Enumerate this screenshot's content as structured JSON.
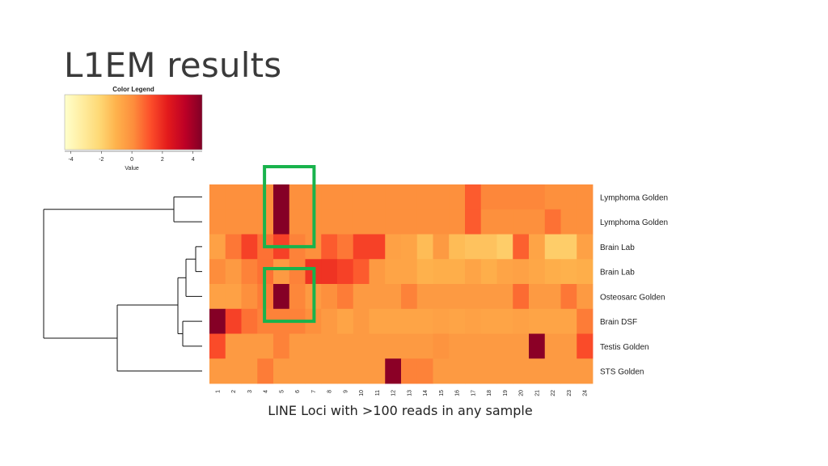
{
  "slide": {
    "title": "L1EM results",
    "caption": "LINE Loci with >100 reads in any sample"
  },
  "chart_data": {
    "type": "heatmap",
    "legend": {
      "title": "Color Legend",
      "axis_label": "Value",
      "ticks": [
        "-4",
        "-2",
        "0",
        "2",
        "4"
      ],
      "range": [
        -4.4,
        4.6
      ],
      "gradient": [
        "#ffffcc",
        "#ffeda0",
        "#fed976",
        "#feb24c",
        "#fd8d3c",
        "#fc4e2a",
        "#e31a1c",
        "#bd0026",
        "#800026"
      ]
    },
    "columns": [
      "1",
      "2",
      "3",
      "4",
      "5",
      "6",
      "7",
      "8",
      "9",
      "10",
      "11",
      "12",
      "13",
      "14",
      "15",
      "16",
      "17",
      "18",
      "19",
      "20",
      "21",
      "22",
      "23",
      "24"
    ],
    "rows": [
      "Lymphoma Golden",
      "Lymphoma Golden",
      "Brain Lab",
      "Brain Lab",
      "Osteosarc Golden",
      "Brain DSF",
      "Testis Golden",
      "STS Golden"
    ],
    "values": [
      [
        0,
        0,
        0,
        0,
        4.5,
        0,
        0,
        0,
        0,
        0,
        0,
        0,
        0,
        0,
        0,
        0,
        1.0,
        0.2,
        0.2,
        0.2,
        0.2,
        0,
        0,
        0
      ],
      [
        0,
        0,
        0,
        0,
        4.5,
        0,
        0,
        0,
        0,
        0,
        0,
        0,
        0,
        0,
        0,
        0,
        1.0,
        0,
        0,
        0,
        0,
        0.6,
        0,
        0
      ],
      [
        -0.5,
        0.5,
        1.5,
        0.6,
        1.5,
        0.3,
        0,
        1.0,
        0.5,
        1.5,
        1.5,
        -0.5,
        -0.6,
        -1.3,
        -0.3,
        -1.3,
        -1.5,
        -1.5,
        -1.8,
        0.9,
        -0.6,
        -1.8,
        -1.8,
        -0.5
      ],
      [
        0.1,
        -0.3,
        0.3,
        0.6,
        -0.3,
        0.3,
        1.8,
        1.8,
        1.5,
        1.0,
        -0.3,
        -0.6,
        -0.6,
        -1.0,
        -0.9,
        -0.9,
        -0.6,
        -0.9,
        -0.6,
        -0.5,
        -0.7,
        -0.9,
        -1.0,
        -0.9
      ],
      [
        -0.5,
        -0.5,
        0,
        0.4,
        4.5,
        0.2,
        -0.3,
        0,
        0.4,
        -0.3,
        -0.3,
        -0.3,
        0.3,
        -0.3,
        -0.3,
        -0.3,
        -0.3,
        -0.3,
        -0.3,
        0.7,
        -0.3,
        -0.3,
        0.5,
        -0.3
      ],
      [
        4.5,
        1.5,
        0.6,
        0.3,
        0.3,
        0.3,
        0,
        -0.3,
        -0.6,
        -0.3,
        -0.6,
        -0.6,
        -0.6,
        -0.6,
        -0.5,
        -0.6,
        -0.5,
        -0.6,
        -0.6,
        -0.5,
        -0.6,
        -0.6,
        -0.6,
        0.4
      ],
      [
        1.3,
        -0.3,
        -0.3,
        -0.3,
        0.3,
        -0.3,
        -0.3,
        -0.3,
        -0.3,
        -0.3,
        -0.3,
        -0.3,
        -0.3,
        -0.3,
        -0.1,
        -0.3,
        -0.3,
        -0.3,
        -0.3,
        -0.3,
        4.4,
        -0.3,
        -0.3,
        1.3
      ],
      [
        -0.3,
        -0.3,
        -0.3,
        0.4,
        -0.3,
        -0.3,
        -0.3,
        -0.3,
        -0.3,
        -0.3,
        -0.3,
        4.4,
        0.3,
        0.3,
        -0.3,
        -0.3,
        -0.3,
        -0.3,
        -0.3,
        -0.3,
        -0.3,
        -0.3,
        -0.3,
        -0.3
      ]
    ],
    "highlight_color": "#19b34c",
    "highlights": [
      {
        "column": "5",
        "rows": [
          "Lymphoma Golden",
          "Lymphoma Golden",
          "Brain Lab"
        ]
      },
      {
        "column": "5",
        "rows": [
          "Brain Lab",
          "Osteosarc Golden",
          "Brain DSF"
        ]
      }
    ],
    "dendrogram": "row clustering, left side",
    "grid": false
  }
}
